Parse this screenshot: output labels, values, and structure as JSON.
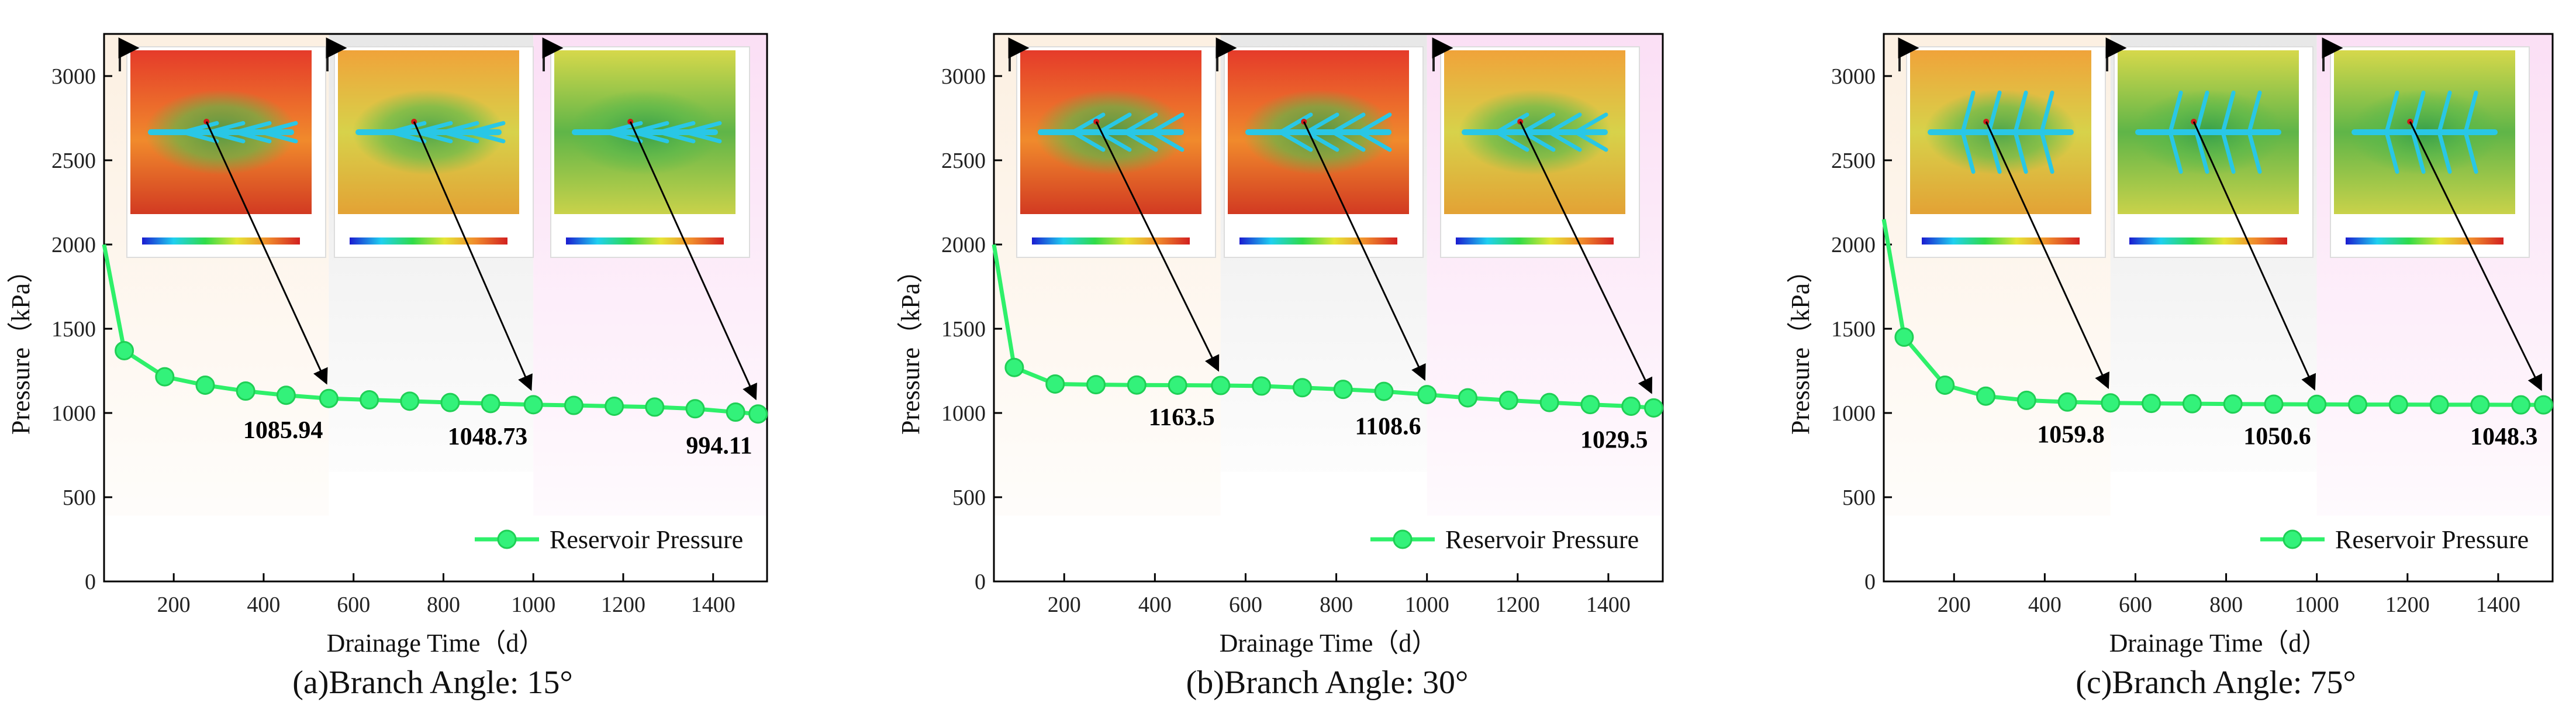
{
  "colors": {
    "series": "#2ef06a",
    "marker_fill": "#33f27a",
    "marker_stroke": "#1fcf55",
    "axis": "#000000",
    "band1": "#fcefe0",
    "band2": "#ececec",
    "band3": "#fbe2f6"
  },
  "icons": [
    "inset-arrow-icon",
    "pressure-contour-map",
    "colorbar"
  ],
  "chart_data": [
    {
      "type": "line",
      "caption": "(a)Branch Angle: 15°",
      "xlabel": "Drainage Time（d）",
      "ylabel": "Pressure（kPa）",
      "xlim": [
        45,
        1520
      ],
      "ylim": [
        0,
        3250
      ],
      "xticks": [
        200,
        400,
        600,
        800,
        1000,
        1200,
        1400
      ],
      "yticks": [
        0,
        500,
        1000,
        1500,
        2000,
        2500,
        3000
      ],
      "legend": "top-right-of-lower-area",
      "series": [
        {
          "name": "Reservoir Pressure",
          "x": [
            45,
            90,
            180,
            270,
            360,
            450,
            545,
            635,
            725,
            815,
            905,
            1000,
            1090,
            1180,
            1270,
            1360,
            1450,
            1500
          ],
          "y": [
            2000,
            1370,
            1215,
            1165,
            1130,
            1105,
            1086,
            1078,
            1070,
            1062,
            1056,
            1049,
            1045,
            1040,
            1035,
            1025,
            1005,
            994
          ]
        }
      ],
      "annotations": [
        {
          "label": "1085.94",
          "x": 545,
          "y": 1086
        },
        {
          "label": "1048.73",
          "x": 1000,
          "y": 1049
        },
        {
          "label": "994.11",
          "x": 1500,
          "y": 994
        }
      ],
      "bands": [
        [
          45,
          545
        ],
        [
          545,
          1000
        ],
        [
          1000,
          1520
        ]
      ]
    },
    {
      "type": "line",
      "caption": "(b)Branch Angle: 30°",
      "xlabel": "Drainage Time（d）",
      "ylabel": "Pressure（kPa）",
      "xlim": [
        45,
        1520
      ],
      "ylim": [
        0,
        3250
      ],
      "xticks": [
        200,
        400,
        600,
        800,
        1000,
        1200,
        1400
      ],
      "yticks": [
        0,
        500,
        1000,
        1500,
        2000,
        2500,
        3000
      ],
      "legend": "top-right-of-lower-area",
      "series": [
        {
          "name": "Reservoir Pressure",
          "x": [
            45,
            90,
            180,
            270,
            360,
            450,
            545,
            635,
            725,
            815,
            905,
            1000,
            1090,
            1180,
            1270,
            1360,
            1450,
            1500
          ],
          "y": [
            2000,
            1270,
            1172,
            1168,
            1166,
            1165,
            1163,
            1160,
            1150,
            1140,
            1128,
            1109,
            1090,
            1075,
            1062,
            1050,
            1040,
            1030
          ]
        }
      ],
      "annotations": [
        {
          "label": "1163.5",
          "x": 545,
          "y": 1163
        },
        {
          "label": "1108.6",
          "x": 1000,
          "y": 1109
        },
        {
          "label": "1029.5",
          "x": 1500,
          "y": 1030
        }
      ],
      "bands": [
        [
          45,
          545
        ],
        [
          545,
          1000
        ],
        [
          1000,
          1520
        ]
      ]
    },
    {
      "type": "line",
      "caption": "(c)Branch Angle: 75°",
      "xlabel": "Drainage Time（d）",
      "ylabel": "Pressure（kPa）",
      "xlim": [
        45,
        1520
      ],
      "ylim": [
        0,
        3250
      ],
      "xticks": [
        200,
        400,
        600,
        800,
        1000,
        1200,
        1400
      ],
      "yticks": [
        0,
        500,
        1000,
        1500,
        2000,
        2500,
        3000
      ],
      "legend": "top-right-of-lower-area",
      "series": [
        {
          "name": "Reservoir Pressure",
          "x": [
            45,
            90,
            180,
            270,
            360,
            450,
            545,
            635,
            725,
            815,
            905,
            1000,
            1090,
            1180,
            1270,
            1360,
            1450,
            1500
          ],
          "y": [
            2150,
            1450,
            1165,
            1100,
            1075,
            1065,
            1060,
            1057,
            1055,
            1053,
            1052,
            1051,
            1050,
            1050,
            1049,
            1049,
            1048,
            1048
          ]
        }
      ],
      "annotations": [
        {
          "label": "1059.8",
          "x": 545,
          "y": 1060
        },
        {
          "label": "1050.6",
          "x": 1000,
          "y": 1051
        },
        {
          "label": "1048.3",
          "x": 1500,
          "y": 1048
        }
      ],
      "bands": [
        [
          45,
          545
        ],
        [
          545,
          1000
        ],
        [
          1000,
          1520
        ]
      ]
    }
  ]
}
